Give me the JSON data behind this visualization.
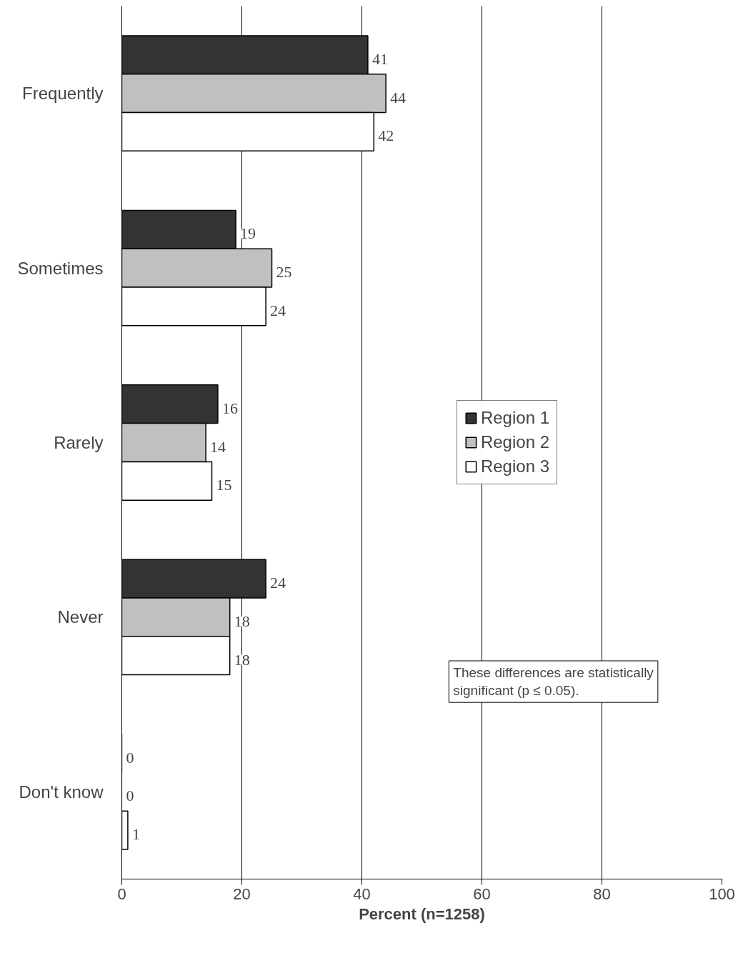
{
  "chart_data": {
    "type": "bar",
    "orientation": "horizontal",
    "xlabel": "Percent (n=1258)",
    "categories": [
      "Frequently",
      "Sometimes",
      "Rarely",
      "Never",
      "Don't know"
    ],
    "series": [
      {
        "name": "Region 1",
        "color": "#333333",
        "values": [
          41,
          19,
          16,
          24,
          0
        ]
      },
      {
        "name": "Region 2",
        "color": "#c0c0c0",
        "values": [
          44,
          25,
          14,
          18,
          0
        ]
      },
      {
        "name": "Region 3",
        "color": "#ffffff",
        "values": [
          42,
          24,
          15,
          18,
          1
        ]
      }
    ],
    "xlim": [
      0,
      100
    ],
    "xticks": [
      0,
      20,
      40,
      60,
      80,
      100
    ],
    "grid": "x",
    "legend": "right",
    "data_labels": true,
    "annotations": [
      "These differences are statistically significant (p ≤ 0.05)."
    ]
  }
}
